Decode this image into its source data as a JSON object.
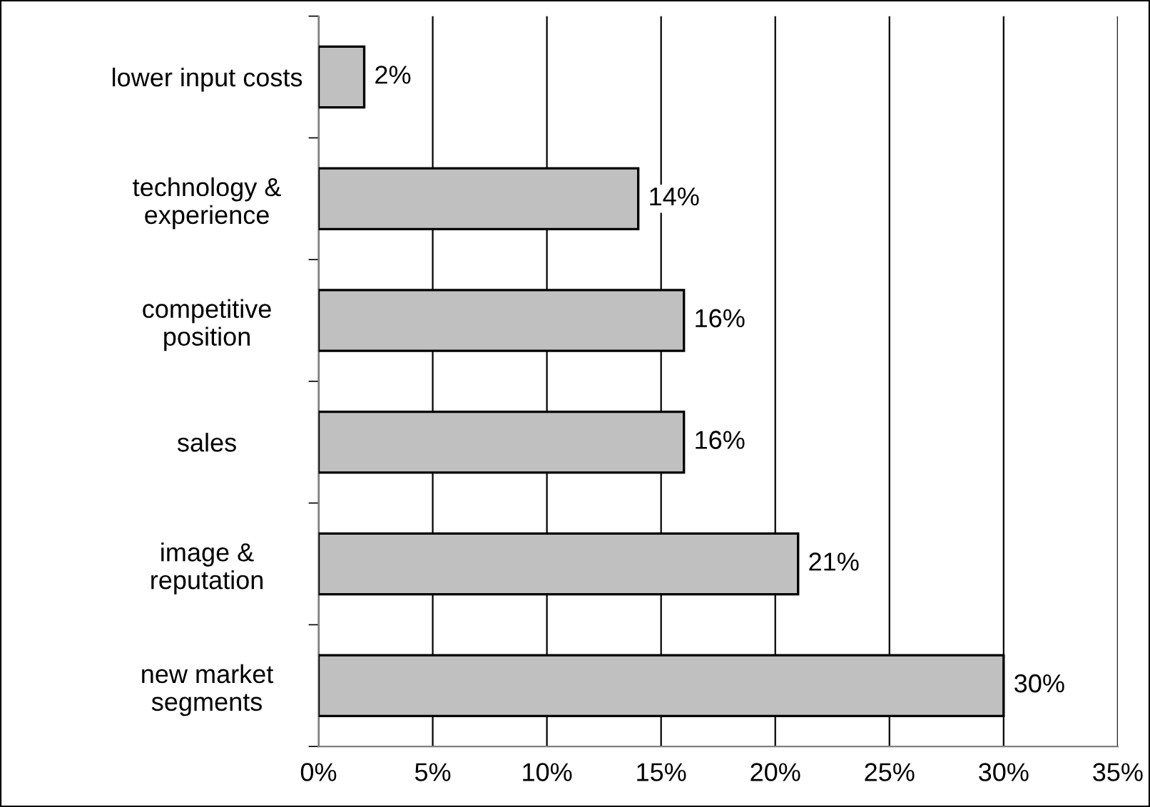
{
  "chart_data": {
    "type": "bar",
    "orientation": "horizontal",
    "categories": [
      "lower input costs",
      "technology &\nexperience",
      "competitive\nposition",
      "sales",
      "image &\nreputation",
      "new market\nsegments"
    ],
    "values": [
      2,
      14,
      16,
      16,
      21,
      30
    ],
    "value_labels": [
      "2%",
      "14%",
      "16%",
      "16%",
      "21%",
      "30%"
    ],
    "color": "#c0c0c0",
    "xlim": [
      0,
      35
    ],
    "xticks": [
      {
        "value": 0,
        "label": "0%"
      },
      {
        "value": 5,
        "label": "5%"
      },
      {
        "value": 10,
        "label": "10%"
      },
      {
        "value": 15,
        "label": "15%"
      },
      {
        "value": 20,
        "label": "20%"
      },
      {
        "value": 25,
        "label": "25%"
      },
      {
        "value": 30,
        "label": "30%"
      },
      {
        "value": 35,
        "label": "35%"
      }
    ],
    "grid": "x",
    "legend": false
  }
}
